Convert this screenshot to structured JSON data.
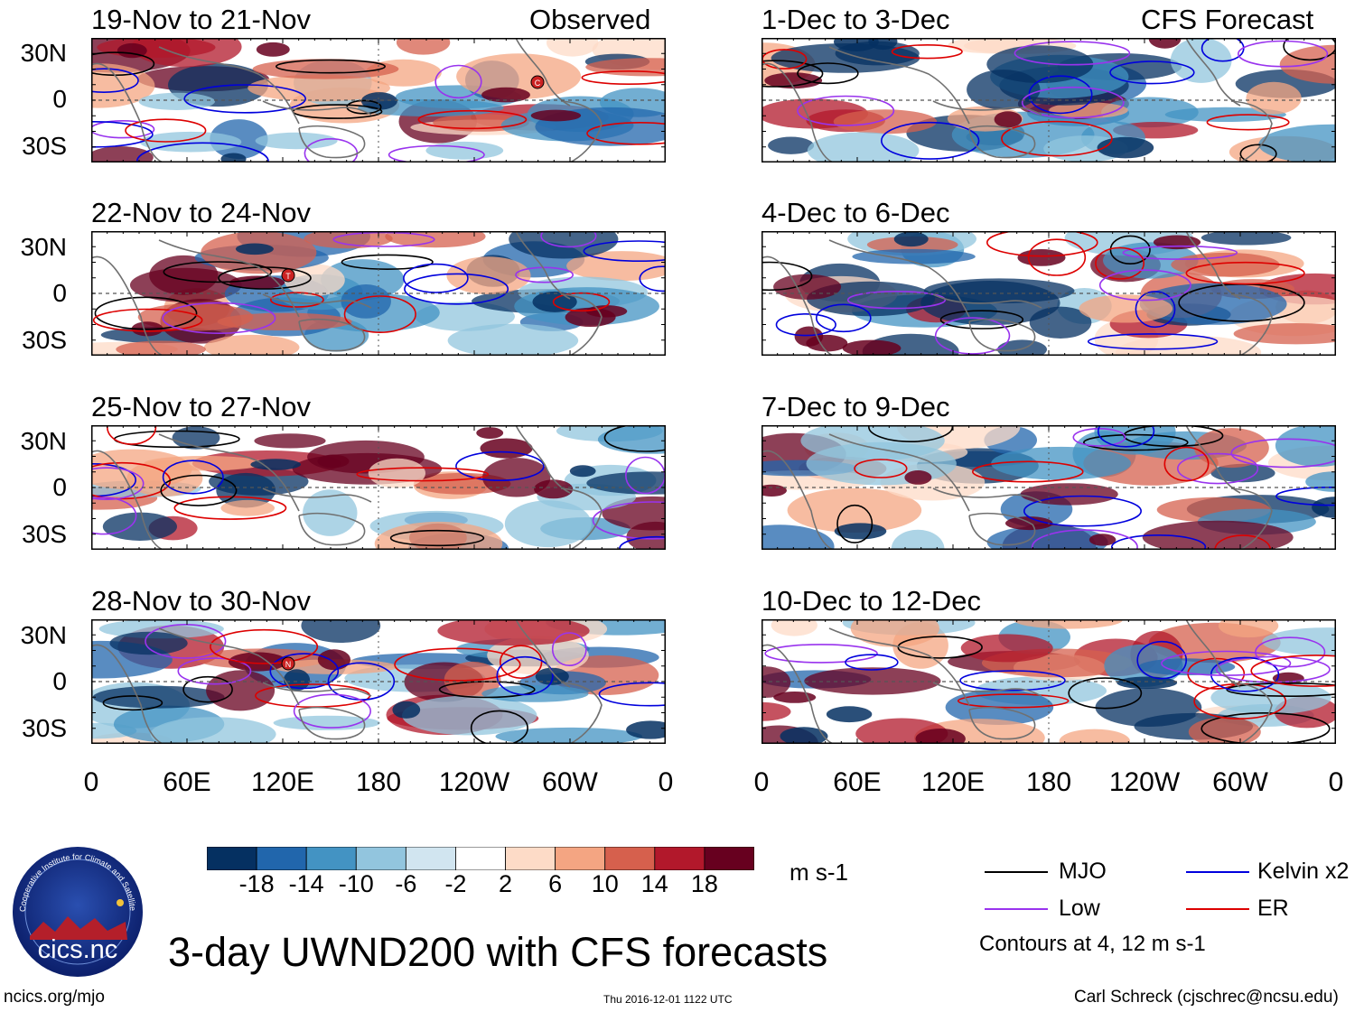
{
  "figure": {
    "main_title": "3-day UWND200 with CFS forecasts",
    "units": "m s-1",
    "footer_left": "ncics.org/mjo",
    "footer_center": "Thu 2016-12-01 1122 UTC",
    "footer_right": "Carl Schreck (cjschrec@ncsu.edu)",
    "contours_note": "Contours at 4, 12 m s-1",
    "logo": {
      "text": "cics.nc",
      "ring_text": "Cooperative Institute for Climate and Satellites"
    }
  },
  "headers": {
    "left": "Observed",
    "right": "CFS Forecast"
  },
  "y_ticks": [
    "30N",
    "0",
    "30S"
  ],
  "x_ticks": [
    "0",
    "60E",
    "120E",
    "180",
    "120W",
    "60W",
    "0"
  ],
  "observed_panels": [
    {
      "title": "19-Nov to 21-Nov",
      "storm": "C"
    },
    {
      "title": "22-Nov to 24-Nov",
      "storm": "T"
    },
    {
      "title": "25-Nov to 27-Nov",
      "storm": null
    },
    {
      "title": "28-Nov to 30-Nov",
      "storm": "N"
    }
  ],
  "forecast_panels": [
    {
      "title": "1-Dec to 3-Dec"
    },
    {
      "title": "4-Dec to 6-Dec"
    },
    {
      "title": "7-Dec to 9-Dec"
    },
    {
      "title": "10-Dec to 12-Dec"
    }
  ],
  "colorbar": {
    "ticks": [
      "-18",
      "-14",
      "-10",
      "-6",
      "-2",
      "2",
      "6",
      "10",
      "14",
      "18"
    ],
    "colors": [
      "#053061",
      "#2166ac",
      "#4393c3",
      "#92c5de",
      "#d1e5f0",
      "#ffffff",
      "#fddbc7",
      "#f4a582",
      "#d6604d",
      "#b2182b",
      "#67001f"
    ]
  },
  "legend": [
    {
      "label": "MJO",
      "color": "#000000"
    },
    {
      "label": "Kelvin x2",
      "color": "#0000dd"
    },
    {
      "label": "Low",
      "color": "#9933ee"
    },
    {
      "label": "ER",
      "color": "#dd0000"
    }
  ]
}
